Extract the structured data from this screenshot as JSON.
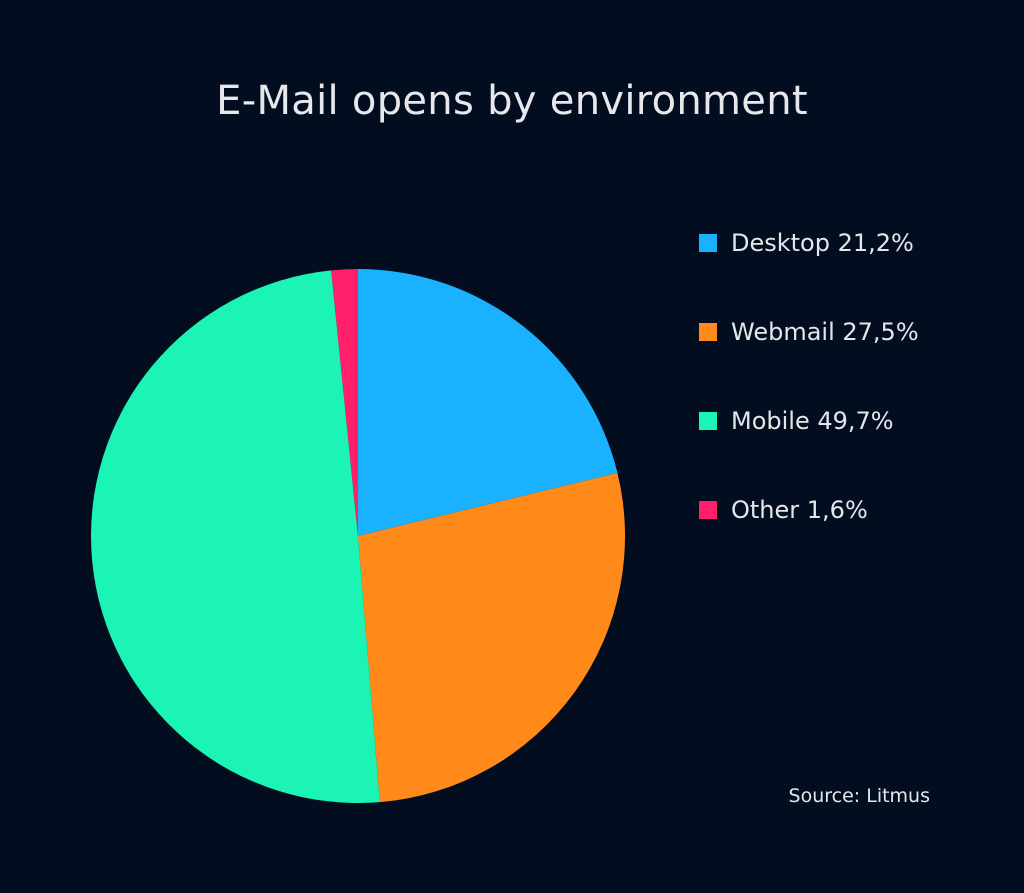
{
  "chart_data": {
    "type": "pie",
    "title": "E-Mail opens by environment",
    "slices": [
      {
        "name": "Desktop",
        "label": "Desktop 21,2%",
        "value": 21.2,
        "color": "#1ab2ff"
      },
      {
        "name": "Webmail",
        "label": "Webmail 27,5%",
        "value": 27.5,
        "color": "#ff8a1a"
      },
      {
        "name": "Mobile",
        "label": "Mobile 49,7%",
        "value": 49.7,
        "color": "#1bf4b4"
      },
      {
        "name": "Other",
        "label": "Other 1,6%",
        "value": 1.6,
        "color": "#ff1f6b"
      }
    ],
    "start_angle": "12 o'clock",
    "direction": "clockwise",
    "legend_position": "right",
    "source": "Source: Litmus"
  },
  "background_color": "#020e1f"
}
